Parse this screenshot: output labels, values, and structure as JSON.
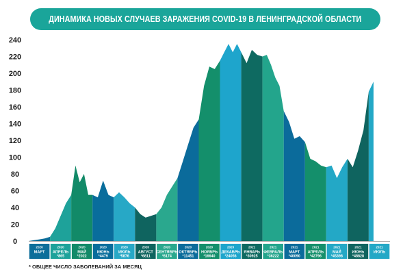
{
  "title": "ДИНАМИКА НОВЫХ СЛУЧАЕВ ЗАРАЖЕНИЯ COVID-19 В ЛЕНИНГРАДСКОЙ ОБЛАСТИ",
  "footnote": "* ОБЩЕЕ ЧИСЛО ЗАБОЛЕВАНИЙ ЗА МЕСЯЦ",
  "chart_data": {
    "type": "area",
    "title": "ДИНАМИКА НОВЫХ СЛУЧАЕВ ЗАРАЖЕНИЯ COVID-19 В ЛЕНИНГРАДСКОЙ ОБЛАСТИ",
    "ylim": [
      0,
      240
    ],
    "yticks": [
      0,
      20,
      40,
      60,
      80,
      100,
      120,
      140,
      160,
      180,
      200,
      220,
      240
    ],
    "grid": false,
    "legend": "none",
    "months": [
      {
        "year": "2020",
        "name": "МАРТ",
        "total": "",
        "color": "#0d6e9a",
        "values": [
          0,
          1,
          2,
          3,
          5
        ]
      },
      {
        "year": "2020",
        "name": "АПРЕЛЬ",
        "total": "*865",
        "color": "#1ea29a",
        "values": [
          5,
          15,
          30,
          45,
          55
        ]
      },
      {
        "year": "2020",
        "name": "МАЙ",
        "total": "*2022",
        "color": "#128a68",
        "values": [
          55,
          90,
          70,
          80,
          55,
          55
        ]
      },
      {
        "year": "2020",
        "name": "ИЮНЬ",
        "total": "*4479",
        "color": "#096d9c",
        "values": [
          55,
          52,
          72,
          55,
          52
        ]
      },
      {
        "year": "2020",
        "name": "ИЮЛЬ",
        "total": "*5876",
        "color": "#27a8c6",
        "values": [
          52,
          58,
          52,
          45,
          40
        ]
      },
      {
        "year": "2020",
        "name": "АВГУСТ",
        "total": "*6811",
        "color": "#0f645f",
        "values": [
          40,
          32,
          28,
          30,
          32
        ]
      },
      {
        "year": "2020",
        "name": "СЕНТЯБРЬ",
        "total": "*8174",
        "color": "#2aa88e",
        "values": [
          32,
          40,
          55,
          65,
          75
        ]
      },
      {
        "year": "2020",
        "name": "ОКТЯБРЬ",
        "total": "*11451",
        "color": "#0b6b9b",
        "values": [
          75,
          95,
          115,
          135,
          145
        ]
      },
      {
        "year": "2020",
        "name": "НОЯБРЬ",
        "total": "*16640",
        "color": "#148f6b",
        "values": [
          145,
          185,
          208,
          205,
          215
        ]
      },
      {
        "year": "2020",
        "name": "ДЕКАБРЬ",
        "total": "*24056",
        "color": "#1ea5cc",
        "values": [
          215,
          225,
          235,
          225,
          235,
          225
        ]
      },
      {
        "year": "2021",
        "name": "ЯНВАРЬ",
        "total": "*30925",
        "color": "#0e6a61",
        "values": [
          225,
          212,
          228,
          222,
          220
        ]
      },
      {
        "year": "2021",
        "name": "ФЕВРАЛЬ",
        "total": "*36222",
        "color": "#23a58c",
        "values": [
          220,
          222,
          210,
          195,
          185,
          155
        ]
      },
      {
        "year": "2021",
        "name": "МАРТ",
        "total": "*40090",
        "color": "#0b6b9b",
        "values": [
          155,
          142,
          122,
          125,
          118
        ]
      },
      {
        "year": "2021",
        "name": "АПРЕЛЬ",
        "total": "*42796",
        "color": "#148f6b",
        "values": [
          118,
          98,
          95,
          90,
          88
        ]
      },
      {
        "year": "2021",
        "name": "МАЙ",
        "total": "*45398",
        "color": "#23a8c6",
        "values": [
          88,
          90,
          75,
          88,
          98
        ]
      },
      {
        "year": "2021",
        "name": "ИЮНЬ",
        "total": "*48828",
        "color": "#0f645f",
        "values": [
          98,
          88,
          108,
          132,
          178
        ]
      },
      {
        "year": "2021",
        "name": "ИЮЛЬ",
        "total": "",
        "color": "#23a8c6",
        "values": [
          178,
          190
        ]
      }
    ]
  }
}
